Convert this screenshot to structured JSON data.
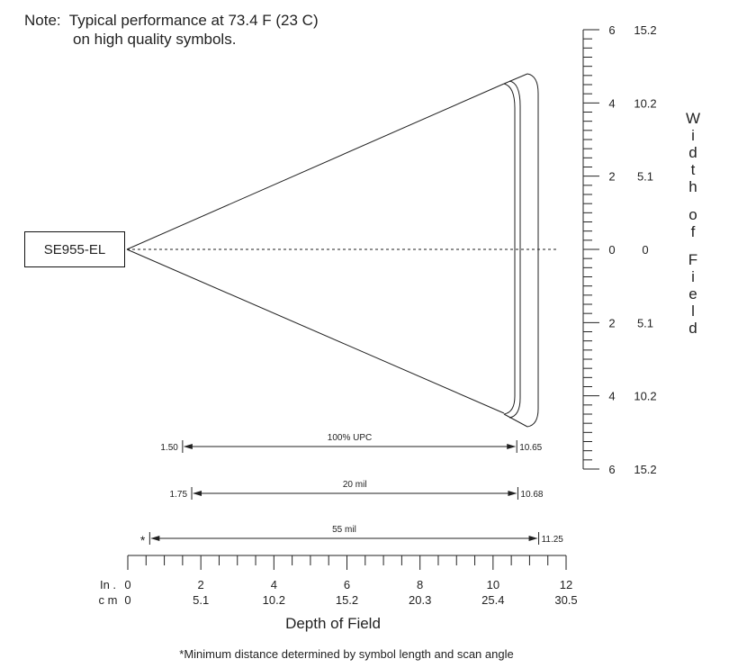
{
  "note": {
    "line1": "Note:  Typical performance at 73.4 F (23 C)",
    "line2": "on high quality symbols."
  },
  "scanner": {
    "label": "SE955-EL"
  },
  "width_axis": {
    "title_letters": [
      "W",
      "i",
      "d",
      "t",
      "h",
      "",
      "o",
      "f",
      "",
      "F",
      "i",
      "e",
      "l",
      "d"
    ],
    "inch_ticks": [
      "6",
      "4",
      "2",
      "0",
      "2",
      "4",
      "6"
    ],
    "cm_ticks": [
      "15.2",
      "10.2",
      "5.1",
      "0",
      "5.1",
      "10.2",
      "15.2"
    ]
  },
  "depth_axis": {
    "unit_in": "In .",
    "unit_cm": "c m",
    "inch_ticks": [
      "0",
      "2",
      "4",
      "6",
      "8",
      "10",
      "12"
    ],
    "cm_ticks": [
      "0",
      "5.1",
      "10.2",
      "15.2",
      "20.3",
      "25.4",
      "30.5"
    ],
    "title": "Depth of Field"
  },
  "ranges": [
    {
      "name": "100% UPC",
      "min_label": "1.50",
      "max_label": "10.65",
      "min_in": 1.5,
      "max_in": 10.65
    },
    {
      "name": "20 mil",
      "min_label": "1.75",
      "max_label": "10.68",
      "min_in": 1.75,
      "max_in": 10.68
    },
    {
      "name": "55 mil",
      "min_label": "*",
      "max_label": "11.25",
      "min_in": 0.6,
      "max_in": 11.25
    }
  ],
  "footnote": "*Minimum distance determined by symbol length and scan angle"
}
